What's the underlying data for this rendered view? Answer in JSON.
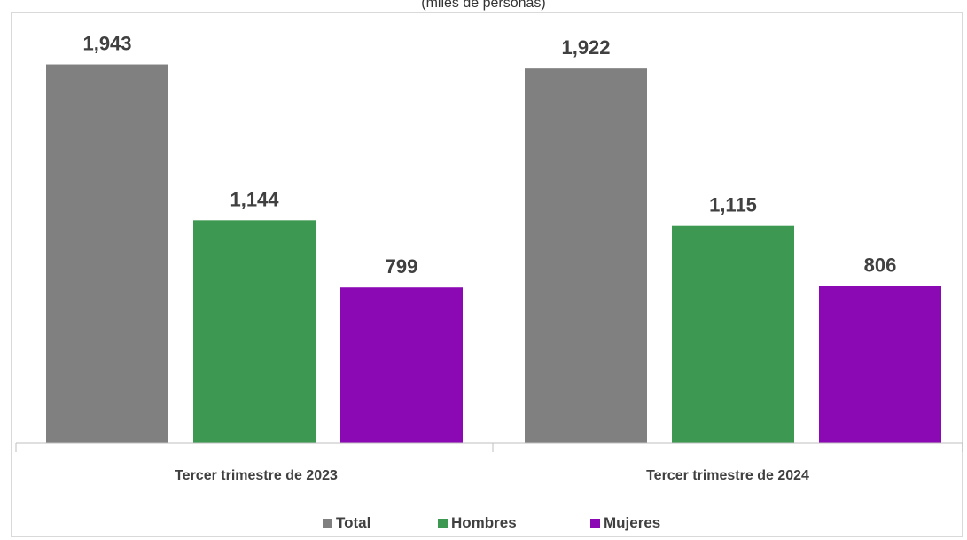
{
  "chart_data": {
    "type": "bar",
    "subtitle": "(miles de personas)",
    "categories": [
      "Tercer trimestre de 2023",
      "Tercer trimestre de 2024"
    ],
    "series": [
      {
        "name": "Total",
        "color": "#808080",
        "values": [
          1943,
          1922
        ],
        "labels": [
          "1,943",
          "1,922"
        ]
      },
      {
        "name": "Hombres",
        "color": "#3d9951",
        "values": [
          1144,
          1115
        ],
        "labels": [
          "1,144",
          "1,115"
        ]
      },
      {
        "name": "Mujeres",
        "color": "#8b08b5",
        "values": [
          799,
          806
        ],
        "labels": [
          "799",
          "806"
        ]
      }
    ],
    "ylim": [
      0,
      2000
    ],
    "grid": false,
    "legend": "bottom"
  }
}
